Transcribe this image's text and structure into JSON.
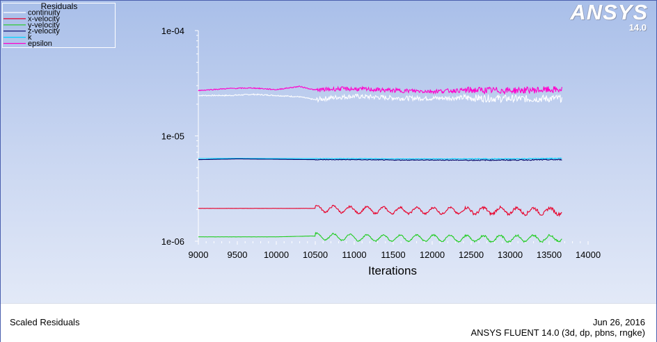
{
  "brand": {
    "logo": "ANSYS",
    "version": "14.0"
  },
  "footer": {
    "left": "Scaled Residuals",
    "date": "Jun 26, 2016",
    "product": "ANSYS FLUENT 14.0 (3d, dp, pbns, rngke)"
  },
  "colors": {
    "continuity": "#ffffff",
    "x-velocity": "#e8002a",
    "y-velocity": "#20cc20",
    "z-velocity": "#000066",
    "k": "#00d4ff",
    "epsilon": "#ff00cc"
  },
  "chart_data": {
    "type": "line",
    "title": "",
    "xlabel": "Iterations",
    "ylabel": "",
    "xlim": [
      9000,
      14000
    ],
    "ylim": [
      1e-06,
      0.0001
    ],
    "yscale": "log",
    "xticks": [
      9000,
      9500,
      10000,
      10500,
      11000,
      11500,
      12000,
      12500,
      13000,
      13500,
      14000
    ],
    "yticks": [
      "1e-04",
      "1e-05",
      "1e-06"
    ],
    "grid": false,
    "legend": {
      "title": "Residuals",
      "placement": "top-left"
    },
    "series": [
      {
        "name": "continuity",
        "color": "#ffffff",
        "points": [
          [
            9000,
            2.42e-05
          ],
          [
            9400,
            2.42e-05
          ],
          [
            9700,
            2.48e-05
          ],
          [
            10000,
            2.42e-05
          ],
          [
            10300,
            2.35e-05
          ],
          [
            10500,
            2.2e-05
          ],
          [
            10750,
            2.32e-05
          ],
          [
            11000,
            2.38e-05
          ],
          [
            11300,
            2.33e-05
          ],
          [
            11600,
            2.28e-05
          ],
          [
            12000,
            2.28e-05
          ],
          [
            12400,
            2.3e-05
          ],
          [
            12800,
            2.27e-05
          ],
          [
            13200,
            2.25e-05
          ],
          [
            13670,
            2.27e-05
          ]
        ]
      },
      {
        "name": "x-velocity",
        "color": "#e8002a",
        "points": [
          [
            9000,
            2.05e-06
          ],
          [
            9500,
            2.05e-06
          ],
          [
            10000,
            2.05e-06
          ],
          [
            10500,
            2.05e-06
          ],
          [
            11000,
            1.98e-06
          ],
          [
            11500,
            1.96e-06
          ],
          [
            12000,
            1.95e-06
          ],
          [
            12500,
            1.95e-06
          ],
          [
            13000,
            1.94e-06
          ],
          [
            13670,
            1.93e-06
          ]
        ]
      },
      {
        "name": "y-velocity",
        "color": "#20cc20",
        "points": [
          [
            9000,
            1.1e-06
          ],
          [
            9500,
            1.1e-06
          ],
          [
            10000,
            1.1e-06
          ],
          [
            10450,
            1.12e-06
          ],
          [
            11000,
            1.08e-06
          ],
          [
            11500,
            1.07e-06
          ],
          [
            12000,
            1.07e-06
          ],
          [
            12500,
            1.06e-06
          ],
          [
            13000,
            1.06e-06
          ],
          [
            13670,
            1.07e-06
          ]
        ]
      },
      {
        "name": "z-velocity",
        "color": "#000066",
        "points": [
          [
            9000,
            5.95e-06
          ],
          [
            9500,
            6.05e-06
          ],
          [
            10000,
            6e-06
          ],
          [
            10500,
            5.95e-06
          ],
          [
            11000,
            5.95e-06
          ],
          [
            11500,
            5.9e-06
          ],
          [
            12000,
            5.9e-06
          ],
          [
            12500,
            5.88e-06
          ],
          [
            13000,
            5.9e-06
          ],
          [
            13670,
            5.95e-06
          ]
        ]
      },
      {
        "name": "k",
        "color": "#00d4ff",
        "points": [
          [
            9000,
            6.1e-06
          ],
          [
            9500,
            6.12e-06
          ],
          [
            10000,
            6.1e-06
          ],
          [
            10500,
            6.08e-06
          ],
          [
            11000,
            6.08e-06
          ],
          [
            11500,
            6.05e-06
          ],
          [
            12000,
            6.05e-06
          ],
          [
            12500,
            6.05e-06
          ],
          [
            13000,
            6.05e-06
          ],
          [
            13670,
            6.12e-06
          ]
        ]
      },
      {
        "name": "epsilon",
        "color": "#ff00cc",
        "points": [
          [
            9000,
            2.7e-05
          ],
          [
            9400,
            2.82e-05
          ],
          [
            9700,
            2.85e-05
          ],
          [
            10000,
            2.75e-05
          ],
          [
            10300,
            2.95e-05
          ],
          [
            10500,
            2.72e-05
          ],
          [
            10800,
            2.8e-05
          ],
          [
            11100,
            2.78e-05
          ],
          [
            11500,
            2.7e-05
          ],
          [
            12000,
            2.65e-05
          ],
          [
            12500,
            2.72e-05
          ],
          [
            13000,
            2.7e-05
          ],
          [
            13670,
            2.75e-05
          ]
        ]
      }
    ]
  }
}
